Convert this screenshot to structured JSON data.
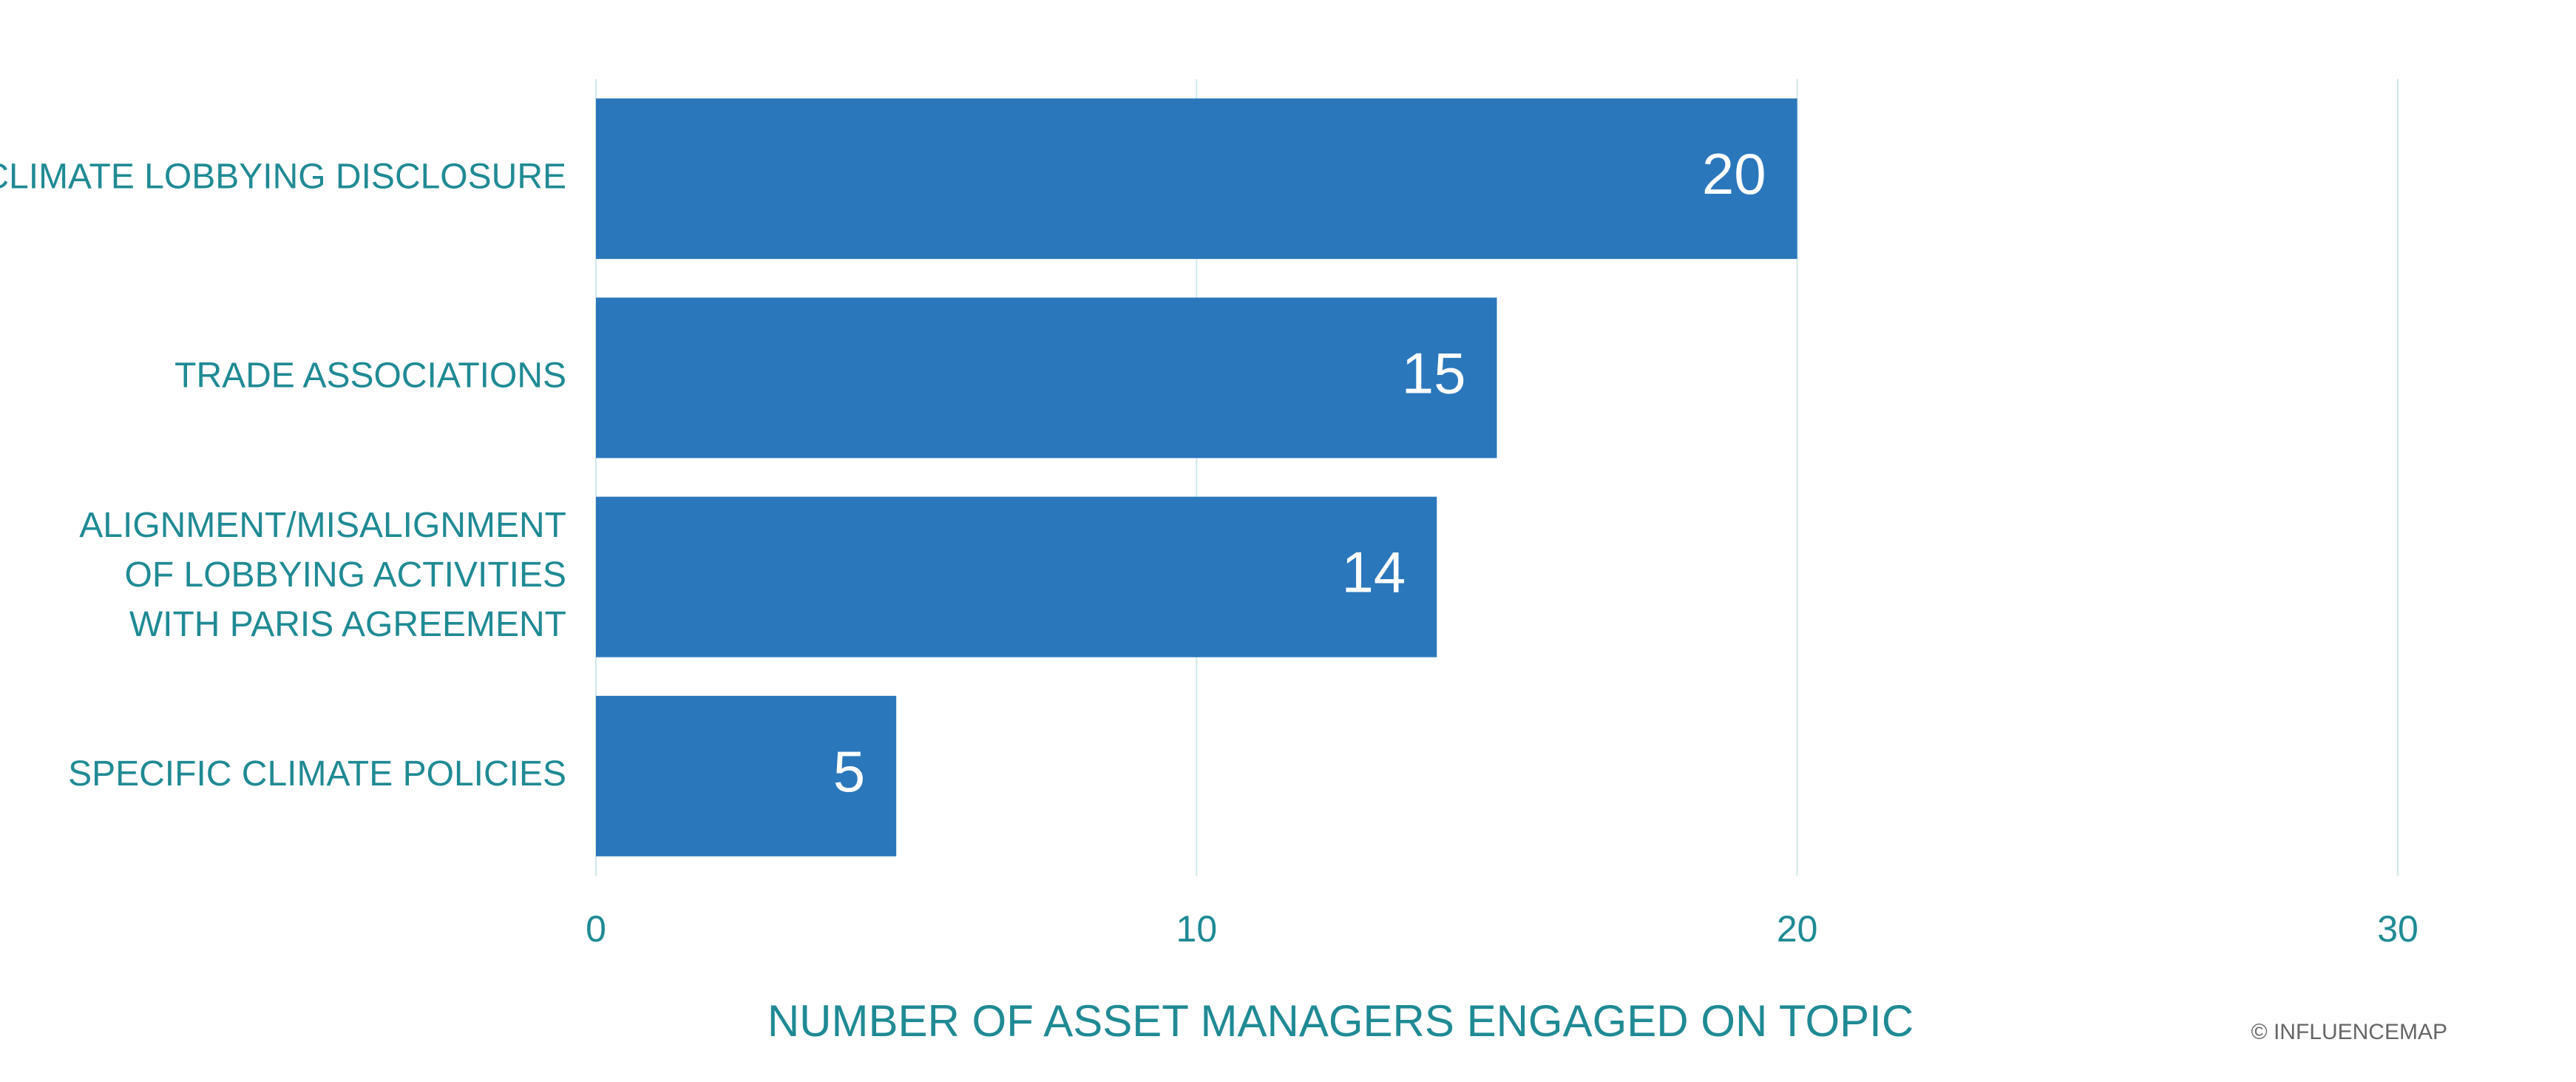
{
  "chart_data": {
    "type": "barh",
    "categories": [
      "CLIMATE LOBBYING DISCLOSURE",
      "TRADE ASSOCIATIONS",
      "ALIGNMENT/MISALIGNMENT\nOF LOBBYING ACTIVITIES\nWITH PARIS AGREEMENT",
      "SPECIFIC CLIMATE POLICIES"
    ],
    "values": [
      20,
      15,
      14,
      5
    ],
    "color": "#2a77bc",
    "xlabel": "NUMBER OF ASSET MANAGERS ENGAGED ON TOPIC",
    "annotation": "© INFLUENCEMAP",
    "xlim": [
      0,
      30
    ],
    "xticks": [
      0,
      10,
      20,
      30
    ],
    "grid": true
  }
}
